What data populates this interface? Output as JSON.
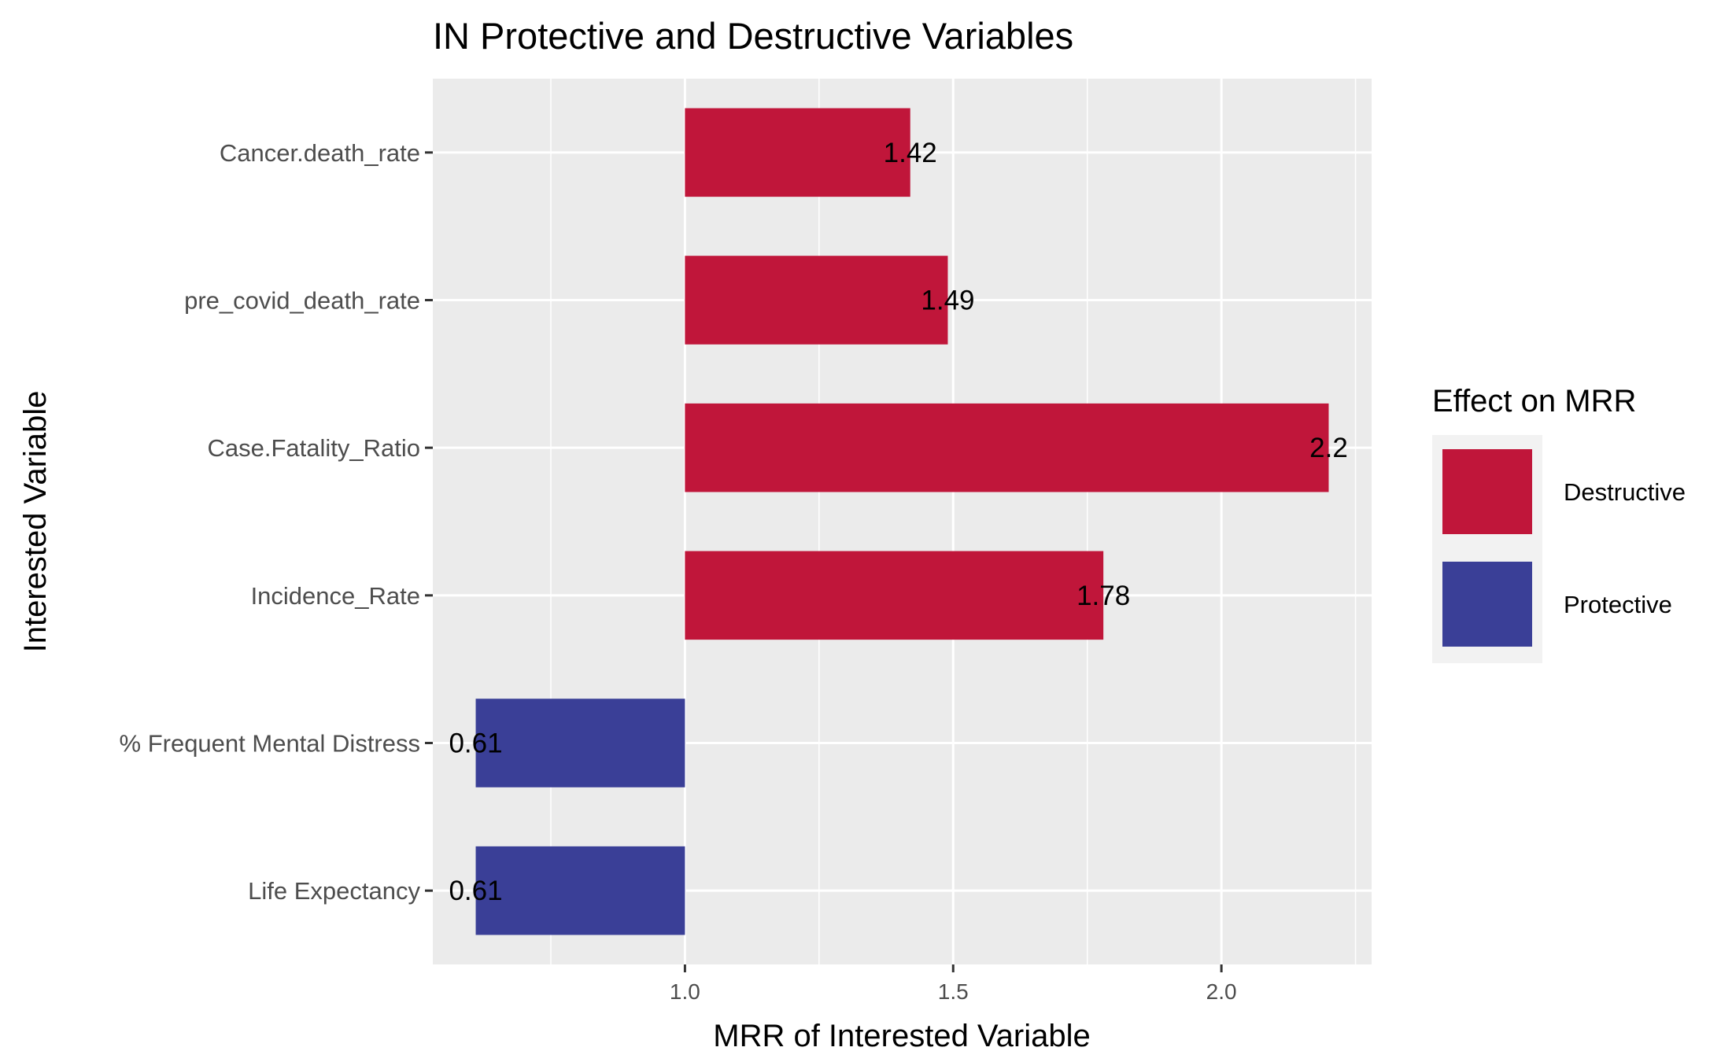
{
  "chart_data": {
    "type": "bar",
    "orientation": "horizontal",
    "title": "IN Protective and Destructive Variables",
    "xlabel": "MRR of Interested Variable",
    "ylabel": "Interested Variable",
    "baseline": 1.0,
    "xlim": [
      0.53,
      2.28
    ],
    "xticks": [
      "1.0",
      "1.5",
      "2.0"
    ],
    "grid": true,
    "legend": {
      "title": "Effect on MRR",
      "placement": "right",
      "entries": [
        {
          "label": "Destructive",
          "color": "#c0163a"
        },
        {
          "label": "Protective",
          "color": "#3a3f97"
        }
      ]
    },
    "bars": [
      {
        "category": "Cancer.death_rate",
        "value": 1.42,
        "label": "1.42",
        "effect": "Destructive"
      },
      {
        "category": "pre_covid_death_rate",
        "value": 1.49,
        "label": "1.49",
        "effect": "Destructive"
      },
      {
        "category": "Case.Fatality_Ratio",
        "value": 2.2,
        "label": "2.2",
        "effect": "Destructive"
      },
      {
        "category": "Incidence_Rate",
        "value": 1.78,
        "label": "1.78",
        "effect": "Destructive"
      },
      {
        "category": "% Frequent Mental Distress",
        "value": 0.61,
        "label": "0.61",
        "effect": "Protective"
      },
      {
        "category": "Life Expectancy",
        "value": 0.61,
        "label": "0.61",
        "effect": "Protective"
      }
    ]
  }
}
